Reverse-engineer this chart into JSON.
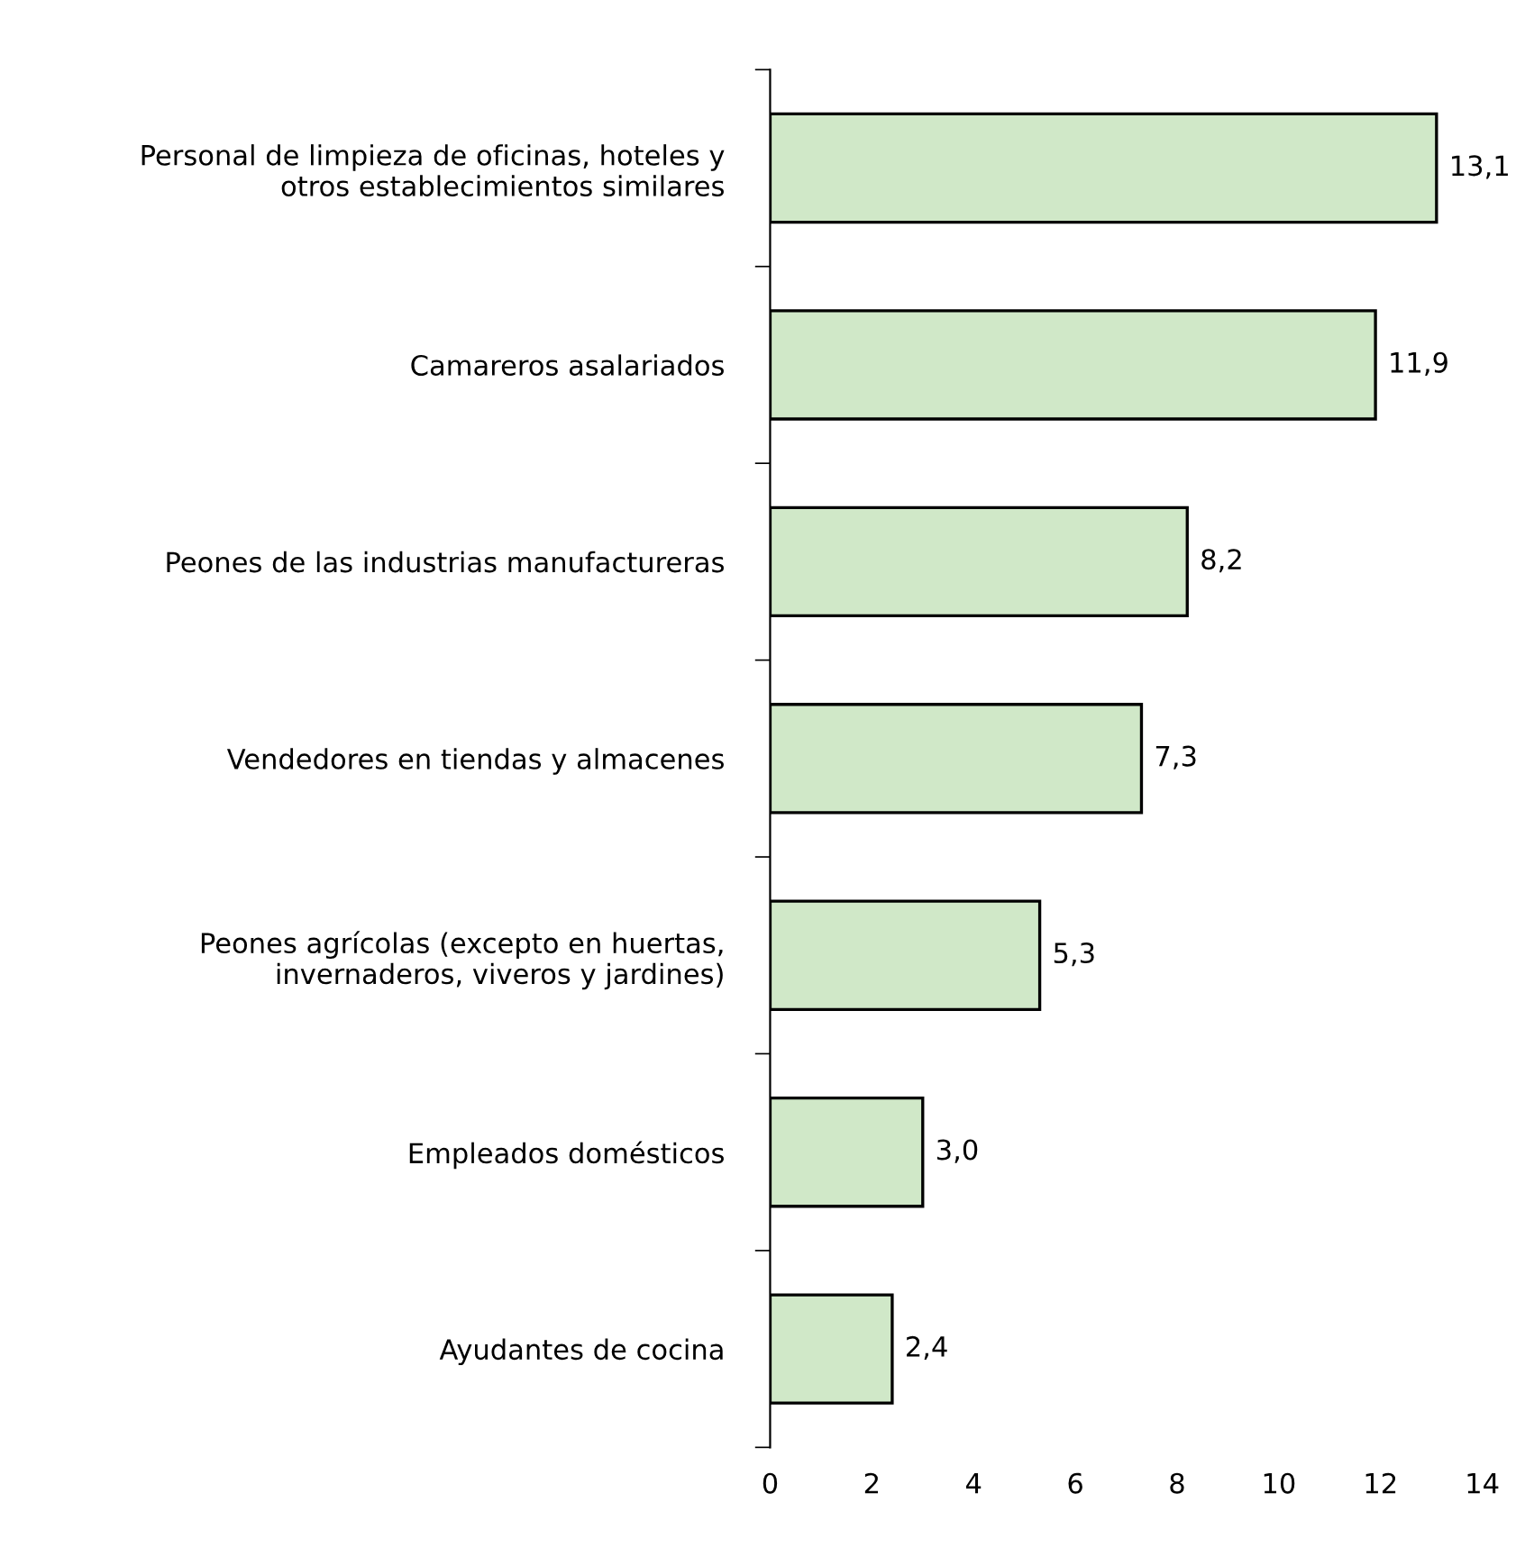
{
  "chart_data": {
    "type": "bar",
    "orientation": "horizontal",
    "categories": [
      "Personal de limpieza de oficinas, hoteles y\notros establecimientos similares",
      "Camareros asalariados",
      "Peones de las industrias manufactureras",
      "Vendedores en tiendas y almacenes",
      "Peones agrícolas (excepto en huertas,\ninvernaderos, viveros y jardines)",
      "Empleados domésticos",
      "Ayudantes de cocina"
    ],
    "values": [
      13.1,
      11.9,
      8.2,
      7.3,
      5.3,
      3.0,
      2.4
    ],
    "value_labels": [
      "13,1",
      "11,9",
      "8,2",
      "7,3",
      "5,3",
      "3,0",
      "2,4"
    ],
    "color": "#d0e8c8",
    "xlim": [
      0,
      14
    ],
    "xticks": [
      0,
      2,
      4,
      6,
      8,
      10,
      12,
      14
    ],
    "grid": false
  }
}
